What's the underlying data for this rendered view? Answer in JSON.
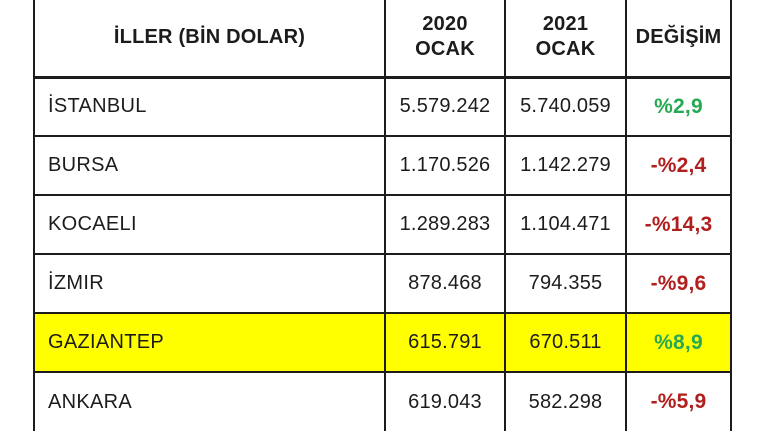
{
  "chart_data": {
    "type": "table",
    "header": {
      "cities": "İLLER (BİN DOLAR)",
      "col_2020": {
        "year": "2020",
        "month": "OCAK"
      },
      "col_2021": {
        "year": "2021",
        "month": "OCAK"
      },
      "change": "DEĞİŞİM"
    },
    "rows": [
      {
        "city": "İSTANBUL",
        "jan_2020": "5.579.242",
        "jan_2021": "5.740.059",
        "change": "%2,9",
        "trend": "up",
        "highlight": false
      },
      {
        "city": "BURSA",
        "jan_2020": "1.170.526",
        "jan_2021": "1.142.279",
        "change": "-%2,4",
        "trend": "down",
        "highlight": false
      },
      {
        "city": "KOCAELI",
        "jan_2020": "1.289.283",
        "jan_2021": "1.104.471",
        "change": "-%14,3",
        "trend": "down",
        "highlight": false
      },
      {
        "city": "İZMIR",
        "jan_2020": "878.468",
        "jan_2021": "794.355",
        "change": "-%9,6",
        "trend": "down",
        "highlight": false
      },
      {
        "city": "GAZIANTEP",
        "jan_2020": "615.791",
        "jan_2021": "670.511",
        "change": "%8,9",
        "trend": "up",
        "highlight": true
      },
      {
        "city": "ANKARA",
        "jan_2020": "619.043",
        "jan_2021": "582.298",
        "change": "-%5,9",
        "trend": "down",
        "highlight": false
      }
    ]
  },
  "colors": {
    "positive_change": "#27a853",
    "negative_change": "#b11e1e",
    "highlight_row": "#ffff00",
    "border": "#1c1c1c"
  }
}
